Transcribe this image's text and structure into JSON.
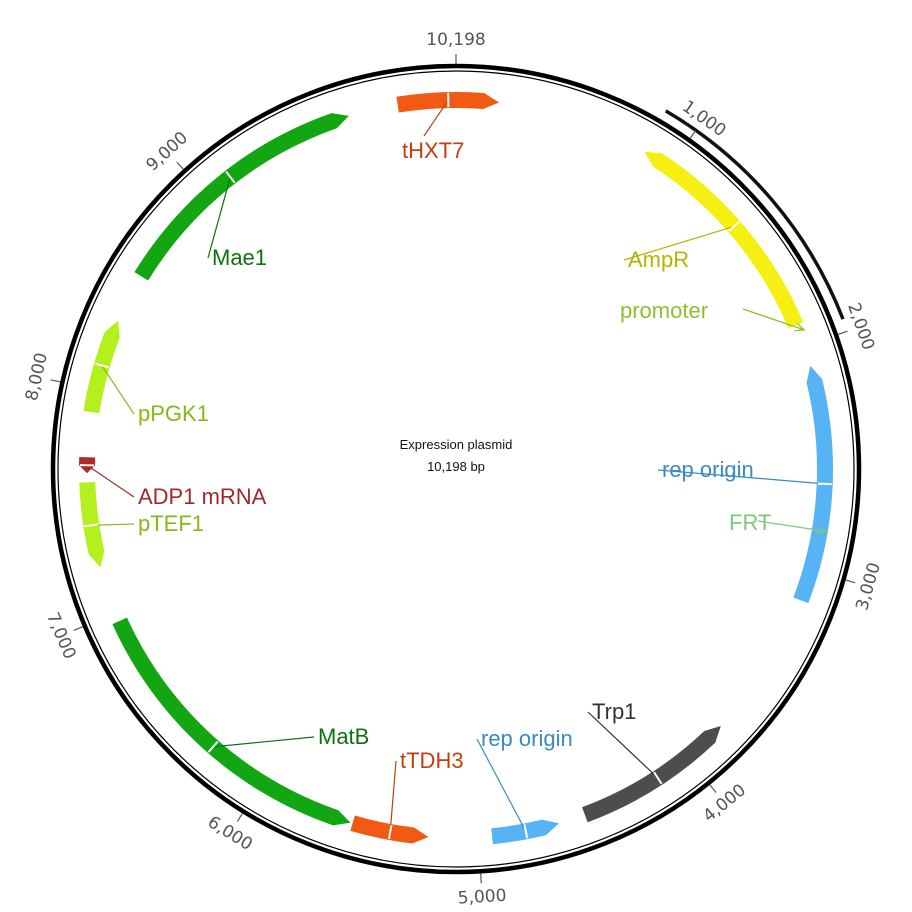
{
  "title": "Expression plasmid",
  "size_label": "10,198 bp",
  "total_bp": 10198,
  "ticks": [
    {
      "bp": 10198,
      "label": "10,198"
    },
    {
      "bp": 1000,
      "label": "1,000"
    },
    {
      "bp": 2000,
      "label": "2,000"
    },
    {
      "bp": 3000,
      "label": "3,000"
    },
    {
      "bp": 4000,
      "label": "4,000"
    },
    {
      "bp": 5000,
      "label": "5,000"
    },
    {
      "bp": 6000,
      "label": "6,000"
    },
    {
      "bp": 7000,
      "label": "7,000"
    },
    {
      "bp": 8000,
      "label": "8,000"
    },
    {
      "bp": 9000,
      "label": "9,000"
    }
  ],
  "highlight": {
    "start": 860,
    "end": 1950,
    "color": "#111111"
  },
  "features": [
    {
      "name": "tHXT7",
      "start": 9940,
      "end": 190,
      "direction": "forward",
      "color": "#f25a13",
      "label_color": "#c0410f"
    },
    {
      "name": "AmpR",
      "start": 870,
      "end": 1900,
      "direction": "reverse",
      "color": "#f5f012",
      "label_color": "#b7b200"
    },
    {
      "name": "promoter",
      "start": 1900,
      "end": 1965,
      "direction": "forward",
      "color": "#8dbf2e",
      "label_color": "#8dbf2e"
    },
    {
      "name": "rep origin",
      "start": 2090,
      "end": 3140,
      "direction": "reverse",
      "color": "#56b4f4",
      "label_color": "#3b8ac4"
    },
    {
      "name": "FRT",
      "start": 2800,
      "end": 2840,
      "direction": "forward",
      "color": "#7dc77d",
      "label_color": "#7dc77d"
    },
    {
      "name": "Trp1",
      "start": 3800,
      "end": 4520,
      "direction": "reverse",
      "color": "#4d4d4d",
      "label_color": "#333333"
    },
    {
      "name": "rep origin",
      "start": 4940,
      "end": 4640,
      "direction": "forward",
      "color": "#56b4f4",
      "label_color": "#3b8ac4"
    },
    {
      "name": "tTDH3",
      "start": 5560,
      "end": 5220,
      "direction": "forward",
      "color": "#f25a13",
      "label_color": "#c0410f"
    },
    {
      "name": "MatB",
      "start": 5570,
      "end": 6960,
      "direction": "reverse",
      "color": "#13a613",
      "label_color": "#107010"
    },
    {
      "name": "pTEF1",
      "start": 7210,
      "end": 7590,
      "direction": "reverse",
      "color": "#b4f01e",
      "label_color": "#86b817"
    },
    {
      "name": "ADP1 mRNA",
      "start": 7630,
      "end": 7700,
      "direction": "reverse",
      "color": "#b02a2a",
      "label_color": "#a02a2a"
    },
    {
      "name": "pPGK1",
      "start": 7900,
      "end": 8320,
      "direction": "forward",
      "color": "#b4f01e",
      "label_color": "#86b817"
    },
    {
      "name": "Mae1",
      "start": 8540,
      "end": 9720,
      "direction": "forward",
      "color": "#13a613",
      "label_color": "#107010"
    }
  ]
}
